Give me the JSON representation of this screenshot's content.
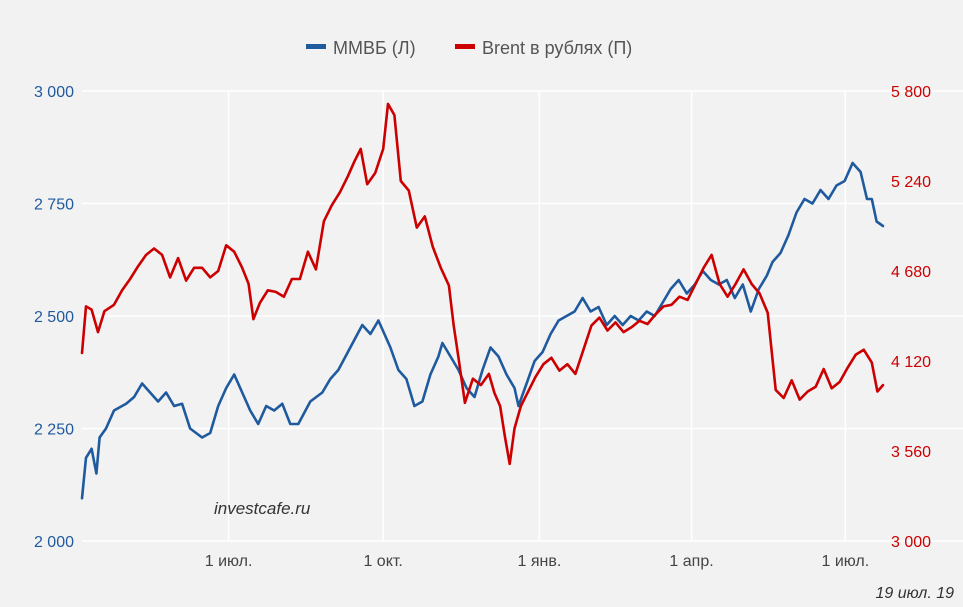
{
  "chart_data": {
    "type": "line",
    "title": "",
    "legend": {
      "placement": "top-center",
      "items": [
        {
          "label": "ММВБ (Л)",
          "color": "#1f5a9e"
        },
        {
          "label": "Brent в рублях (П)",
          "color": "#cc0000"
        }
      ]
    },
    "x_axis": {
      "ticks": [
        {
          "label": "1 июл.",
          "t": 0.183
        },
        {
          "label": "1 окт.",
          "t": 0.376
        },
        {
          "label": "1 янв.",
          "t": 0.571
        },
        {
          "label": "1 апр.",
          "t": 0.761
        },
        {
          "label": "1 июл.",
          "t": 0.953
        }
      ]
    },
    "y_left": {
      "range": [
        2000,
        3000
      ],
      "ticks": [
        "2 000",
        "2 250",
        "2 500",
        "2 750",
        "3 000"
      ],
      "color": "#1f5a9e"
    },
    "y_right": {
      "range": [
        3000,
        5800
      ],
      "ticks": [
        "3 000",
        "3 560",
        "4 120",
        "4 680",
        "5 240",
        "5 800"
      ],
      "color": "#cc0000"
    },
    "grid": true,
    "series": [
      {
        "name": "ММВБ (Л)",
        "axis": "left",
        "color": "#1f5a9e",
        "points": [
          [
            0.0,
            2095
          ],
          [
            0.005,
            2185
          ],
          [
            0.012,
            2205
          ],
          [
            0.018,
            2150
          ],
          [
            0.022,
            2230
          ],
          [
            0.03,
            2250
          ],
          [
            0.04,
            2290
          ],
          [
            0.055,
            2305
          ],
          [
            0.065,
            2320
          ],
          [
            0.075,
            2350
          ],
          [
            0.085,
            2330
          ],
          [
            0.095,
            2310
          ],
          [
            0.105,
            2330
          ],
          [
            0.115,
            2300
          ],
          [
            0.125,
            2305
          ],
          [
            0.135,
            2250
          ],
          [
            0.15,
            2230
          ],
          [
            0.16,
            2240
          ],
          [
            0.17,
            2300
          ],
          [
            0.18,
            2340
          ],
          [
            0.19,
            2370
          ],
          [
            0.2,
            2330
          ],
          [
            0.21,
            2290
          ],
          [
            0.22,
            2260
          ],
          [
            0.23,
            2300
          ],
          [
            0.24,
            2290
          ],
          [
            0.25,
            2305
          ],
          [
            0.26,
            2260
          ],
          [
            0.27,
            2260
          ],
          [
            0.285,
            2310
          ],
          [
            0.3,
            2330
          ],
          [
            0.31,
            2360
          ],
          [
            0.32,
            2380
          ],
          [
            0.335,
            2430
          ],
          [
            0.35,
            2480
          ],
          [
            0.36,
            2460
          ],
          [
            0.37,
            2490
          ],
          [
            0.385,
            2430
          ],
          [
            0.395,
            2380
          ],
          [
            0.405,
            2360
          ],
          [
            0.415,
            2300
          ],
          [
            0.425,
            2310
          ],
          [
            0.435,
            2370
          ],
          [
            0.445,
            2410
          ],
          [
            0.45,
            2440
          ],
          [
            0.46,
            2410
          ],
          [
            0.47,
            2380
          ],
          [
            0.48,
            2340
          ],
          [
            0.49,
            2320
          ],
          [
            0.5,
            2380
          ],
          [
            0.51,
            2430
          ],
          [
            0.52,
            2410
          ],
          [
            0.53,
            2370
          ],
          [
            0.54,
            2340
          ],
          [
            0.545,
            2300
          ],
          [
            0.555,
            2350
          ],
          [
            0.565,
            2400
          ],
          [
            0.575,
            2420
          ],
          [
            0.585,
            2460
          ],
          [
            0.595,
            2490
          ],
          [
            0.605,
            2500
          ],
          [
            0.615,
            2510
          ],
          [
            0.625,
            2540
          ],
          [
            0.635,
            2510
          ],
          [
            0.645,
            2520
          ],
          [
            0.655,
            2480
          ],
          [
            0.665,
            2500
          ],
          [
            0.675,
            2480
          ],
          [
            0.685,
            2500
          ],
          [
            0.695,
            2490
          ],
          [
            0.705,
            2510
          ],
          [
            0.715,
            2500
          ],
          [
            0.725,
            2530
          ],
          [
            0.735,
            2560
          ],
          [
            0.745,
            2580
          ],
          [
            0.755,
            2550
          ],
          [
            0.765,
            2570
          ],
          [
            0.775,
            2600
          ],
          [
            0.785,
            2580
          ],
          [
            0.795,
            2570
          ],
          [
            0.805,
            2580
          ],
          [
            0.815,
            2540
          ],
          [
            0.825,
            2570
          ],
          [
            0.835,
            2510
          ],
          [
            0.845,
            2560
          ],
          [
            0.855,
            2590
          ],
          [
            0.862,
            2620
          ],
          [
            0.872,
            2640
          ],
          [
            0.882,
            2680
          ],
          [
            0.892,
            2730
          ],
          [
            0.902,
            2760
          ],
          [
            0.912,
            2750
          ],
          [
            0.922,
            2780
          ],
          [
            0.932,
            2760
          ],
          [
            0.942,
            2790
          ],
          [
            0.952,
            2800
          ],
          [
            0.962,
            2840
          ],
          [
            0.972,
            2820
          ],
          [
            0.98,
            2760
          ],
          [
            0.986,
            2760
          ],
          [
            0.992,
            2710
          ],
          [
            1.0,
            2700
          ]
        ]
      },
      {
        "name": "Brent в рублях (П)",
        "axis": "right",
        "color": "#cc0000",
        "points": [
          [
            0.0,
            4170
          ],
          [
            0.005,
            4460
          ],
          [
            0.012,
            4440
          ],
          [
            0.02,
            4300
          ],
          [
            0.028,
            4430
          ],
          [
            0.04,
            4470
          ],
          [
            0.05,
            4560
          ],
          [
            0.06,
            4630
          ],
          [
            0.07,
            4710
          ],
          [
            0.08,
            4780
          ],
          [
            0.09,
            4820
          ],
          [
            0.1,
            4780
          ],
          [
            0.11,
            4640
          ],
          [
            0.12,
            4760
          ],
          [
            0.13,
            4620
          ],
          [
            0.14,
            4700
          ],
          [
            0.15,
            4700
          ],
          [
            0.16,
            4640
          ],
          [
            0.17,
            4680
          ],
          [
            0.18,
            4840
          ],
          [
            0.19,
            4800
          ],
          [
            0.2,
            4700
          ],
          [
            0.208,
            4600
          ],
          [
            0.214,
            4380
          ],
          [
            0.222,
            4480
          ],
          [
            0.232,
            4560
          ],
          [
            0.242,
            4550
          ],
          [
            0.252,
            4520
          ],
          [
            0.262,
            4630
          ],
          [
            0.272,
            4630
          ],
          [
            0.282,
            4800
          ],
          [
            0.292,
            4690
          ],
          [
            0.302,
            4990
          ],
          [
            0.312,
            5090
          ],
          [
            0.322,
            5170
          ],
          [
            0.332,
            5270
          ],
          [
            0.34,
            5360
          ],
          [
            0.348,
            5440
          ],
          [
            0.356,
            5220
          ],
          [
            0.366,
            5290
          ],
          [
            0.376,
            5440
          ],
          [
            0.382,
            5720
          ],
          [
            0.39,
            5650
          ],
          [
            0.398,
            5240
          ],
          [
            0.408,
            5180
          ],
          [
            0.418,
            4950
          ],
          [
            0.428,
            5020
          ],
          [
            0.438,
            4830
          ],
          [
            0.448,
            4700
          ],
          [
            0.458,
            4590
          ],
          [
            0.464,
            4340
          ],
          [
            0.47,
            4140
          ],
          [
            0.478,
            3860
          ],
          [
            0.488,
            4010
          ],
          [
            0.498,
            3970
          ],
          [
            0.508,
            4040
          ],
          [
            0.515,
            3920
          ],
          [
            0.522,
            3840
          ],
          [
            0.528,
            3650
          ],
          [
            0.534,
            3480
          ],
          [
            0.54,
            3700
          ],
          [
            0.548,
            3840
          ],
          [
            0.556,
            3920
          ],
          [
            0.566,
            4020
          ],
          [
            0.576,
            4100
          ],
          [
            0.586,
            4140
          ],
          [
            0.596,
            4060
          ],
          [
            0.606,
            4100
          ],
          [
            0.616,
            4040
          ],
          [
            0.626,
            4190
          ],
          [
            0.636,
            4340
          ],
          [
            0.646,
            4390
          ],
          [
            0.656,
            4310
          ],
          [
            0.666,
            4360
          ],
          [
            0.676,
            4300
          ],
          [
            0.686,
            4330
          ],
          [
            0.696,
            4370
          ],
          [
            0.706,
            4350
          ],
          [
            0.716,
            4410
          ],
          [
            0.726,
            4460
          ],
          [
            0.736,
            4470
          ],
          [
            0.746,
            4520
          ],
          [
            0.756,
            4500
          ],
          [
            0.766,
            4600
          ],
          [
            0.776,
            4700
          ],
          [
            0.786,
            4780
          ],
          [
            0.796,
            4600
          ],
          [
            0.806,
            4520
          ],
          [
            0.816,
            4600
          ],
          [
            0.826,
            4690
          ],
          [
            0.836,
            4600
          ],
          [
            0.846,
            4540
          ],
          [
            0.856,
            4420
          ],
          [
            0.866,
            3940
          ],
          [
            0.876,
            3890
          ],
          [
            0.886,
            4000
          ],
          [
            0.896,
            3880
          ],
          [
            0.906,
            3930
          ],
          [
            0.916,
            3960
          ],
          [
            0.926,
            4070
          ],
          [
            0.936,
            3950
          ],
          [
            0.946,
            3990
          ],
          [
            0.956,
            4080
          ],
          [
            0.966,
            4160
          ],
          [
            0.976,
            4190
          ],
          [
            0.986,
            4110
          ],
          [
            0.993,
            3930
          ],
          [
            1.0,
            3970
          ]
        ]
      }
    ]
  },
  "watermark": "investcafe.ru",
  "date_note": "19 июл. 19"
}
